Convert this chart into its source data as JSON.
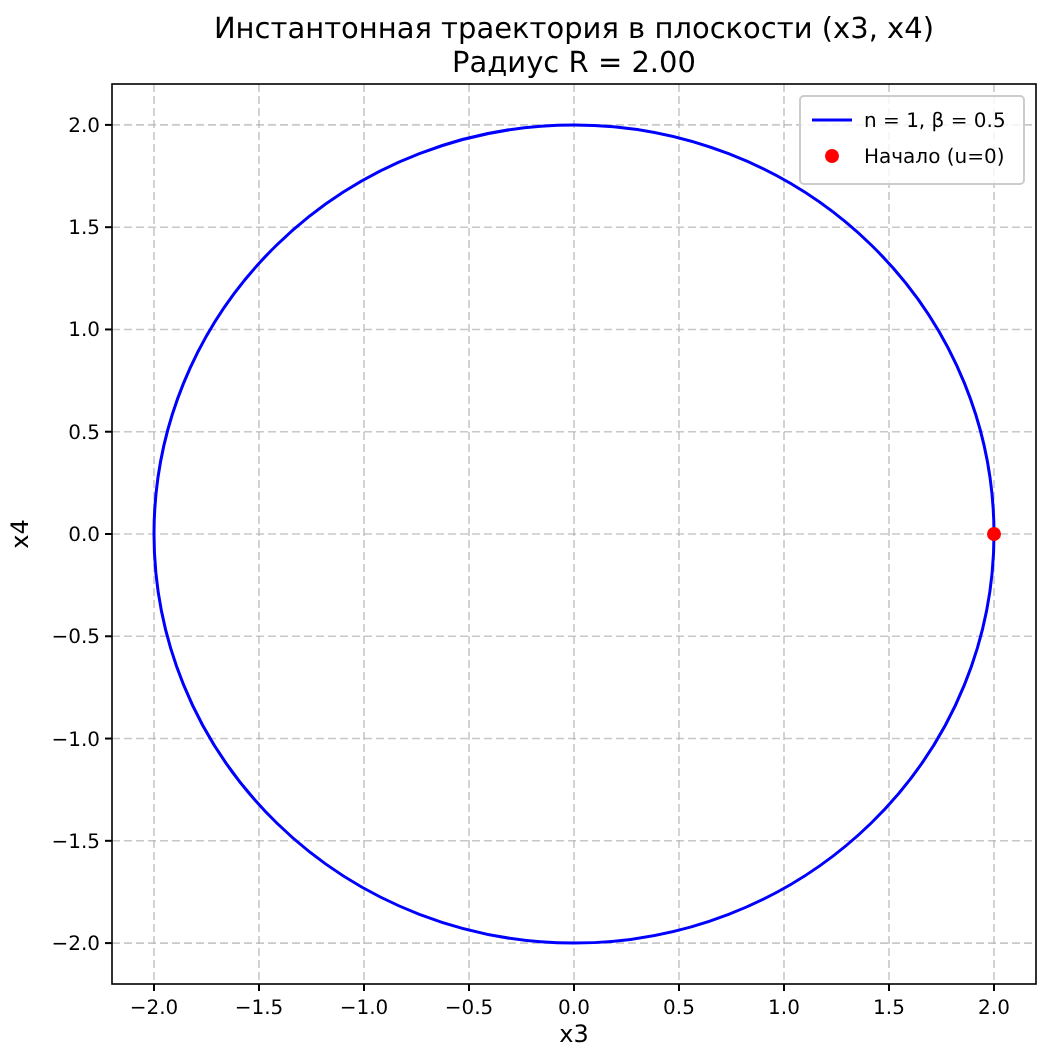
{
  "chart_data": {
    "type": "line",
    "title": "Инстантонная траектория в плоскости (x3, x4)",
    "subtitle": "Радиус R = 2.00",
    "xlabel": "x3",
    "ylabel": "x4",
    "xlim": [
      -2.2,
      2.2
    ],
    "ylim": [
      -2.2,
      2.2
    ],
    "xticks": [
      {
        "value": -2,
        "label": "−2.0"
      },
      {
        "value": -1.5,
        "label": "−1.5"
      },
      {
        "value": -1,
        "label": "−1.0"
      },
      {
        "value": -0.5,
        "label": "−0.5"
      },
      {
        "value": 0,
        "label": "0.0"
      },
      {
        "value": 0.5,
        "label": "0.5"
      },
      {
        "value": 1,
        "label": "1.0"
      },
      {
        "value": 1.5,
        "label": "1.5"
      },
      {
        "value": 2,
        "label": "2.0"
      }
    ],
    "yticks": [
      {
        "value": -2,
        "label": "−2.0"
      },
      {
        "value": -1.5,
        "label": "−1.5"
      },
      {
        "value": -1,
        "label": "−1.0"
      },
      {
        "value": -0.5,
        "label": "−0.5"
      },
      {
        "value": 0,
        "label": "0.0"
      },
      {
        "value": 0.5,
        "label": "0.5"
      },
      {
        "value": 1,
        "label": "1.0"
      },
      {
        "value": 1.5,
        "label": "1.5"
      },
      {
        "value": 2,
        "label": "2.0"
      }
    ],
    "grid": true,
    "legend": "top right",
    "line_style": "solid",
    "series": [
      {
        "name": "n = 1, β = 0.5",
        "color": "#0000ff"
      },
      {
        "name": "Начало (u=0)",
        "color": "#ff0000",
        "type": "scatter",
        "marker": "circle",
        "x": [
          2
        ],
        "values": [
          0
        ]
      }
    ]
  }
}
